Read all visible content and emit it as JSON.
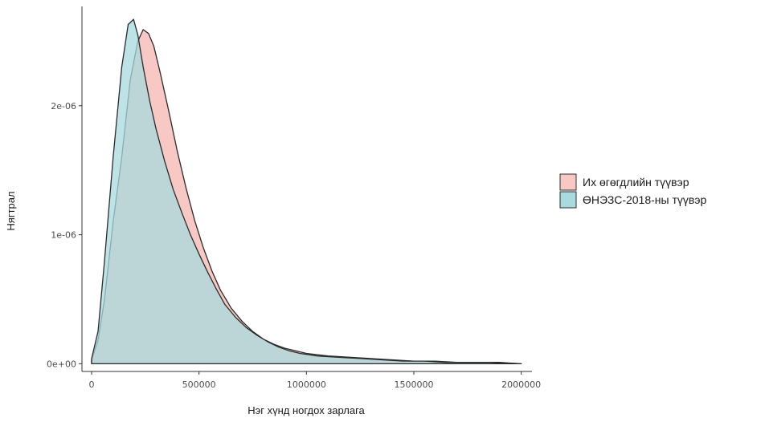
{
  "chart_data": {
    "type": "area",
    "title": "",
    "xlabel": "Нэг хүнд ногдох зарлага",
    "ylabel": "Нягтрал",
    "xlim": [
      -45000,
      2050000
    ],
    "ylim": [
      -6e-08,
      2.77e-06
    ],
    "x_ticks": [
      0,
      500000,
      1000000,
      1500000,
      2000000
    ],
    "x_tick_labels": [
      "0",
      "500000",
      "1000000",
      "1500000",
      "2000000"
    ],
    "y_ticks": [
      0,
      1e-06,
      2e-06
    ],
    "y_tick_labels": [
      "0e+00",
      "1e-06",
      "2e-06"
    ],
    "grid": false,
    "legend_position": "right",
    "series": [
      {
        "name": "Их өгөгдлийн түүвэр",
        "color": "#F8766D",
        "fill": "#F8C9C4",
        "points": [
          [
            0,
            3e-08
          ],
          [
            30000,
            1.8e-07
          ],
          [
            60000,
            5e-07
          ],
          [
            100000,
            1.1e-06
          ],
          [
            140000,
            1.6e-06
          ],
          [
            180000,
            2.2e-06
          ],
          [
            215000,
            2.5e-06
          ],
          [
            240000,
            2.59e-06
          ],
          [
            265000,
            2.56e-06
          ],
          [
            290000,
            2.46e-06
          ],
          [
            320000,
            2.25e-06
          ],
          [
            360000,
            1.95e-06
          ],
          [
            400000,
            1.64e-06
          ],
          [
            440000,
            1.36e-06
          ],
          [
            480000,
            1.11e-06
          ],
          [
            520000,
            9e-07
          ],
          [
            560000,
            7.2e-07
          ],
          [
            600000,
            5.7e-07
          ],
          [
            650000,
            4.3e-07
          ],
          [
            700000,
            3.3e-07
          ],
          [
            750000,
            2.5e-07
          ],
          [
            800000,
            1.9e-07
          ],
          [
            850000,
            1.5e-07
          ],
          [
            900000,
            1.2e-07
          ],
          [
            950000,
            1e-07
          ],
          [
            1000000,
            8e-08
          ],
          [
            1100000,
            6e-08
          ],
          [
            1200000,
            5e-08
          ],
          [
            1300000,
            4e-08
          ],
          [
            1400000,
            3e-08
          ],
          [
            1500000,
            2e-08
          ],
          [
            1600000,
            2e-08
          ],
          [
            1700000,
            1e-08
          ],
          [
            1800000,
            1e-08
          ],
          [
            1900000,
            1e-08
          ],
          [
            2000000,
            0
          ]
        ]
      },
      {
        "name": "ӨНЭЗС-2018-ны түүвэр",
        "color": "#00BFC4",
        "fill": "#A8DADF",
        "points": [
          [
            0,
            4e-08
          ],
          [
            30000,
            2.5e-07
          ],
          [
            60000,
            8e-07
          ],
          [
            100000,
            1.6e-06
          ],
          [
            140000,
            2.3e-06
          ],
          [
            170000,
            2.63e-06
          ],
          [
            195000,
            2.67e-06
          ],
          [
            215000,
            2.55e-06
          ],
          [
            240000,
            2.3e-06
          ],
          [
            270000,
            2.04e-06
          ],
          [
            300000,
            1.82e-06
          ],
          [
            340000,
            1.57e-06
          ],
          [
            380000,
            1.35e-06
          ],
          [
            420000,
            1.17e-06
          ],
          [
            460000,
            1e-06
          ],
          [
            500000,
            8.5e-07
          ],
          [
            540000,
            7.1e-07
          ],
          [
            580000,
            5.8e-07
          ],
          [
            620000,
            4.6e-07
          ],
          [
            670000,
            3.6e-07
          ],
          [
            720000,
            2.8e-07
          ],
          [
            770000,
            2.2e-07
          ],
          [
            820000,
            1.7e-07
          ],
          [
            870000,
            1.3e-07
          ],
          [
            920000,
            1e-07
          ],
          [
            970000,
            8e-08
          ],
          [
            1050000,
            6e-08
          ],
          [
            1150000,
            5e-08
          ],
          [
            1250000,
            4e-08
          ],
          [
            1350000,
            3e-08
          ],
          [
            1450000,
            2e-08
          ],
          [
            1550000,
            2e-08
          ],
          [
            1650000,
            1e-08
          ],
          [
            1750000,
            1e-08
          ],
          [
            1850000,
            1e-08
          ],
          [
            2000000,
            0
          ]
        ]
      }
    ]
  }
}
